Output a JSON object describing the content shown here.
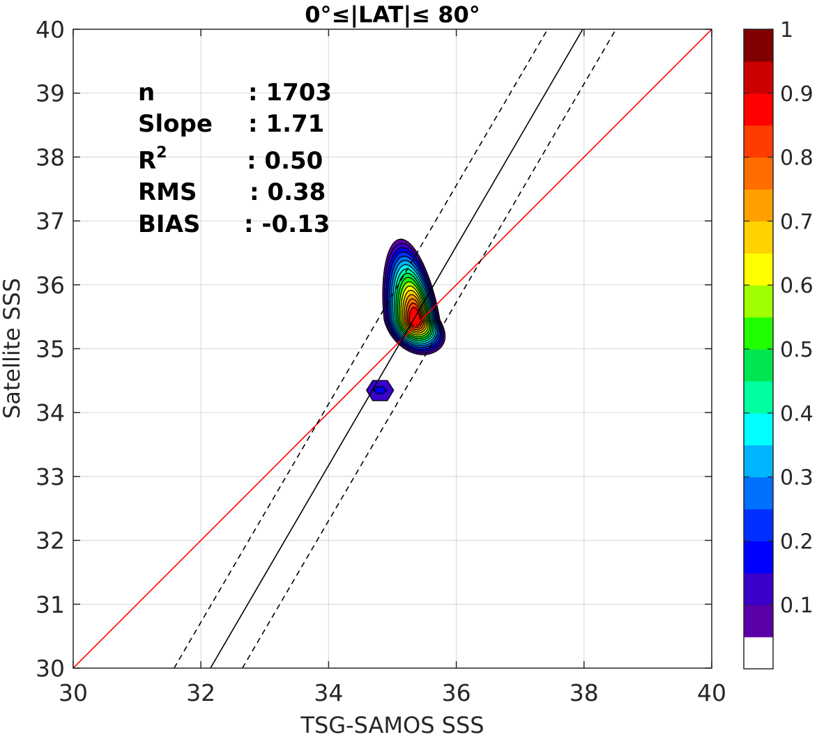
{
  "chart_data": {
    "type": "contour",
    "title": "0°≤|LAT|≤ 80°",
    "xlabel": "TSG-SAMOS SSS",
    "ylabel": "Satellite SSS",
    "xlim": [
      30,
      40
    ],
    "ylim": [
      30,
      40
    ],
    "x_ticks": [
      30,
      32,
      34,
      36,
      38,
      40
    ],
    "y_ticks": [
      30,
      31,
      32,
      33,
      34,
      35,
      36,
      37,
      38,
      39,
      40
    ],
    "grid": true,
    "stats": [
      {
        "label": "n",
        "value": ": 1703"
      },
      {
        "label": "Slope",
        "value": ": 1.71"
      },
      {
        "label": "R",
        "sup": "2",
        "value": ": 0.50"
      },
      {
        "label": "RMS",
        "value": ": 0.38"
      },
      {
        "label": "BIAS",
        "value": ": -0.13"
      }
    ],
    "lines": [
      {
        "role": "one-to-one",
        "color": "#ff0000",
        "points": [
          [
            30,
            30
          ],
          [
            40,
            40
          ]
        ]
      },
      {
        "role": "regression-fit",
        "color": "#000000",
        "style": "solid",
        "points": [
          [
            32.15,
            30
          ],
          [
            37.98,
            40
          ]
        ]
      },
      {
        "role": "fit-minus-rms",
        "color": "#000000",
        "style": "dashed",
        "points": [
          [
            31.58,
            30
          ],
          [
            37.43,
            40
          ]
        ]
      },
      {
        "role": "fit-plus-rms",
        "color": "#000000",
        "style": "dashed",
        "points": [
          [
            32.65,
            30
          ],
          [
            38.5,
            40
          ]
        ]
      }
    ],
    "contour_centers": [
      {
        "x": 35.35,
        "y": 35.45,
        "peak": 1.0
      },
      {
        "x": 34.8,
        "y": 34.35,
        "peak": 0.15
      }
    ],
    "colorbar": {
      "range": [
        0,
        1
      ],
      "tick_labels": [
        "0.1",
        "0.2",
        "0.3",
        "0.4",
        "0.5",
        "0.6",
        "0.7",
        "0.8",
        "0.9",
        "1"
      ],
      "tick_values": [
        0.1,
        0.2,
        0.3,
        0.4,
        0.5,
        0.6,
        0.7,
        0.8,
        0.9,
        1.0
      ],
      "colors": [
        "#ffffff",
        "#5a00a8",
        "#3a00cc",
        "#0000ff",
        "#0030ff",
        "#0070ff",
        "#00b4ff",
        "#00ffff",
        "#00ffa0",
        "#00e650",
        "#20ff00",
        "#a0ff00",
        "#ffff00",
        "#ffd200",
        "#ffa000",
        "#ff6c00",
        "#ff3c00",
        "#ff0000",
        "#cc0000",
        "#800000"
      ]
    }
  }
}
